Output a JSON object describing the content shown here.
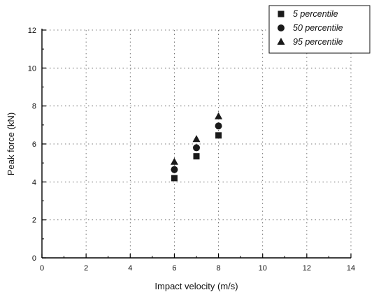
{
  "chart_data": {
    "type": "scatter",
    "xlabel": "Impact velocity (m/s)",
    "ylabel": "Peak force (kN)",
    "xlim": [
      0,
      14
    ],
    "ylim": [
      0,
      12
    ],
    "xticks": [
      "0",
      "2",
      "4",
      "6",
      "8",
      "10",
      "12",
      "14"
    ],
    "yticks": [
      "0",
      "2",
      "4",
      "6",
      "8",
      "10",
      "12"
    ],
    "grid": true,
    "legend_position": "top-right",
    "series": [
      {
        "name": "5 percentile",
        "marker": "square",
        "color": "#1a1a1a",
        "points": [
          {
            "x": 6,
            "y": 4.2
          },
          {
            "x": 7,
            "y": 5.35
          },
          {
            "x": 8,
            "y": 6.45
          }
        ]
      },
      {
        "name": "50 percentile",
        "marker": "circle",
        "color": "#1a1a1a",
        "points": [
          {
            "x": 6,
            "y": 4.65
          },
          {
            "x": 7,
            "y": 5.8
          },
          {
            "x": 8,
            "y": 6.95
          }
        ]
      },
      {
        "name": "95 percentile",
        "marker": "triangle",
        "color": "#1a1a1a",
        "points": [
          {
            "x": 6,
            "y": 5.05
          },
          {
            "x": 7,
            "y": 6.25
          },
          {
            "x": 8,
            "y": 7.45
          }
        ]
      }
    ]
  }
}
